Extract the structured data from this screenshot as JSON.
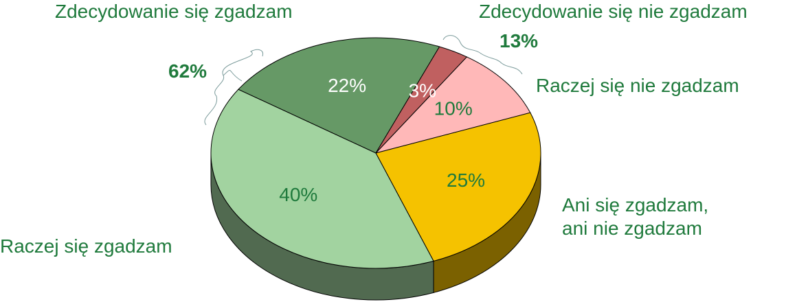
{
  "chart_data": {
    "type": "pie3d",
    "categories": [
      "Zdecydowanie się zgadzam",
      "Zdecydowanie się nie zgadzam",
      "Raczej się nie zgadzam",
      "Ani się zgadzam,\nani nie zgadzam",
      "Raczej się zgadzam"
    ],
    "values": [
      22,
      3,
      10,
      25,
      40
    ],
    "value_labels": [
      "22%",
      "3%",
      "10%",
      "25%",
      "40%"
    ],
    "colors": [
      "#669966",
      "#c06060",
      "#ffb8b8",
      "#f5c200",
      "#a2d3a0"
    ],
    "annotations": [
      "62%",
      "13%"
    ]
  }
}
